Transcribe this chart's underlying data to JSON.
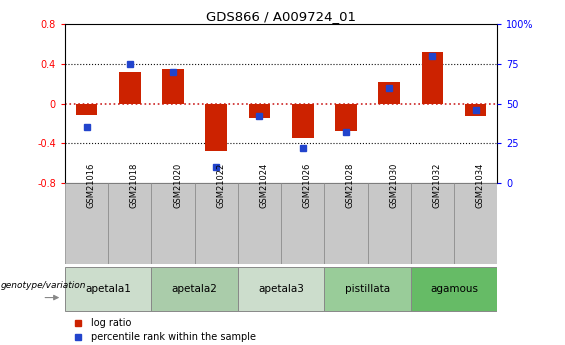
{
  "title": "GDS866 / A009724_01",
  "samples": [
    "GSM21016",
    "GSM21018",
    "GSM21020",
    "GSM21022",
    "GSM21024",
    "GSM21026",
    "GSM21028",
    "GSM21030",
    "GSM21032",
    "GSM21034"
  ],
  "log_ratio": [
    -0.12,
    0.32,
    0.35,
    -0.48,
    -0.15,
    -0.35,
    -0.28,
    0.22,
    0.52,
    -0.13
  ],
  "percentile_rank": [
    35,
    75,
    70,
    10,
    42,
    22,
    32,
    60,
    80,
    46
  ],
  "ylim": [
    -0.8,
    0.8
  ],
  "yticks": [
    -0.8,
    -0.4,
    0.0,
    0.4,
    0.8
  ],
  "right_yticks": [
    0,
    25,
    50,
    75,
    100
  ],
  "bar_color": "#CC2200",
  "blue_color": "#2244CC",
  "zero_line_color": "#CC2222",
  "grid_color": "#111111",
  "groups": [
    {
      "label": "apetala1",
      "samples": [
        "GSM21016",
        "GSM21018"
      ],
      "color": "#CCDDCC"
    },
    {
      "label": "apetala2",
      "samples": [
        "GSM21020",
        "GSM21022"
      ],
      "color": "#AACCAA"
    },
    {
      "label": "apetala3",
      "samples": [
        "GSM21024",
        "GSM21026"
      ],
      "color": "#CCDDCC"
    },
    {
      "label": "pistillata",
      "samples": [
        "GSM21028",
        "GSM21030"
      ],
      "color": "#99CC99"
    },
    {
      "label": "agamous",
      "samples": [
        "GSM21032",
        "GSM21034"
      ],
      "color": "#66BB66"
    }
  ],
  "bar_width": 0.5,
  "blue_marker_size": 5,
  "gsm_box_color": "#C8C8C8",
  "legend_bar_color": "#CC2200",
  "legend_blue_color": "#2244CC"
}
